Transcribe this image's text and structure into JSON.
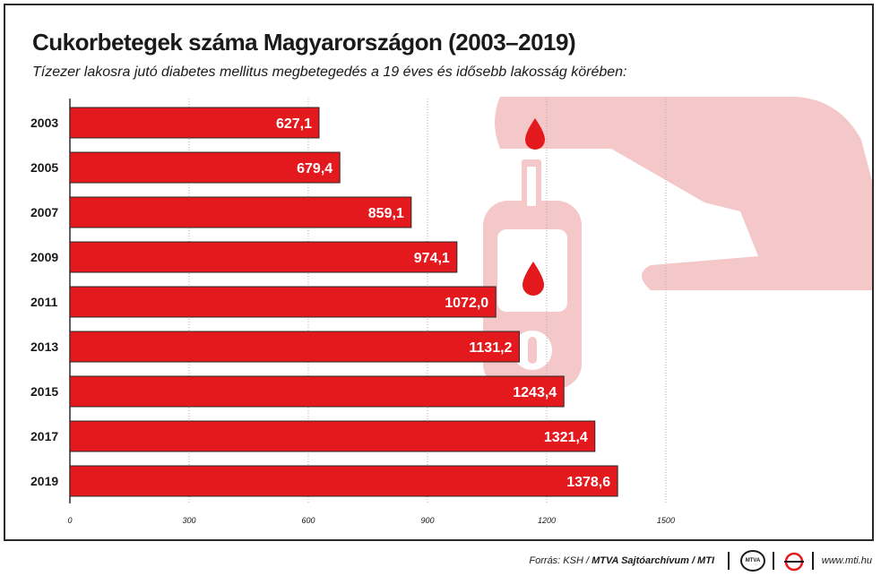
{
  "chart_data": {
    "type": "bar",
    "orientation": "horizontal",
    "title": "Cukorbetegek száma Magyarországon (2003–2019)",
    "subtitle": "Tízezer lakosra jutó diabetes mellitus megbetegedés a 19 éves és idősebb lakosság körében:",
    "categories": [
      "2003",
      "2005",
      "2007",
      "2009",
      "2011",
      "2013",
      "2015",
      "2017",
      "2019"
    ],
    "values": [
      627.1,
      679.4,
      859.1,
      974.1,
      1072.0,
      1131.2,
      1243.4,
      1321.4,
      1378.6
    ],
    "value_labels": [
      "627,1",
      "679,4",
      "859,1",
      "974,1",
      "1072,0",
      "1131,2",
      "1243,4",
      "1321,4",
      "1378,6"
    ],
    "xlim": [
      0,
      1500
    ],
    "xticks": [
      0,
      300,
      600,
      900,
      1200,
      1500
    ],
    "xtick_labels": [
      "0",
      "300",
      "600",
      "900",
      "1200",
      "1500"
    ],
    "grid": true,
    "bar_color": "#e3191e",
    "illustration_color": "#f4c8c8",
    "drop_color": "#e3191e"
  },
  "footer": {
    "source_prefix": "Forrás: KSH / ",
    "source_bold": "MTVA Sajtóarchívum / MTI",
    "logo_text": "MTVA",
    "site": "www.mti.hu"
  }
}
